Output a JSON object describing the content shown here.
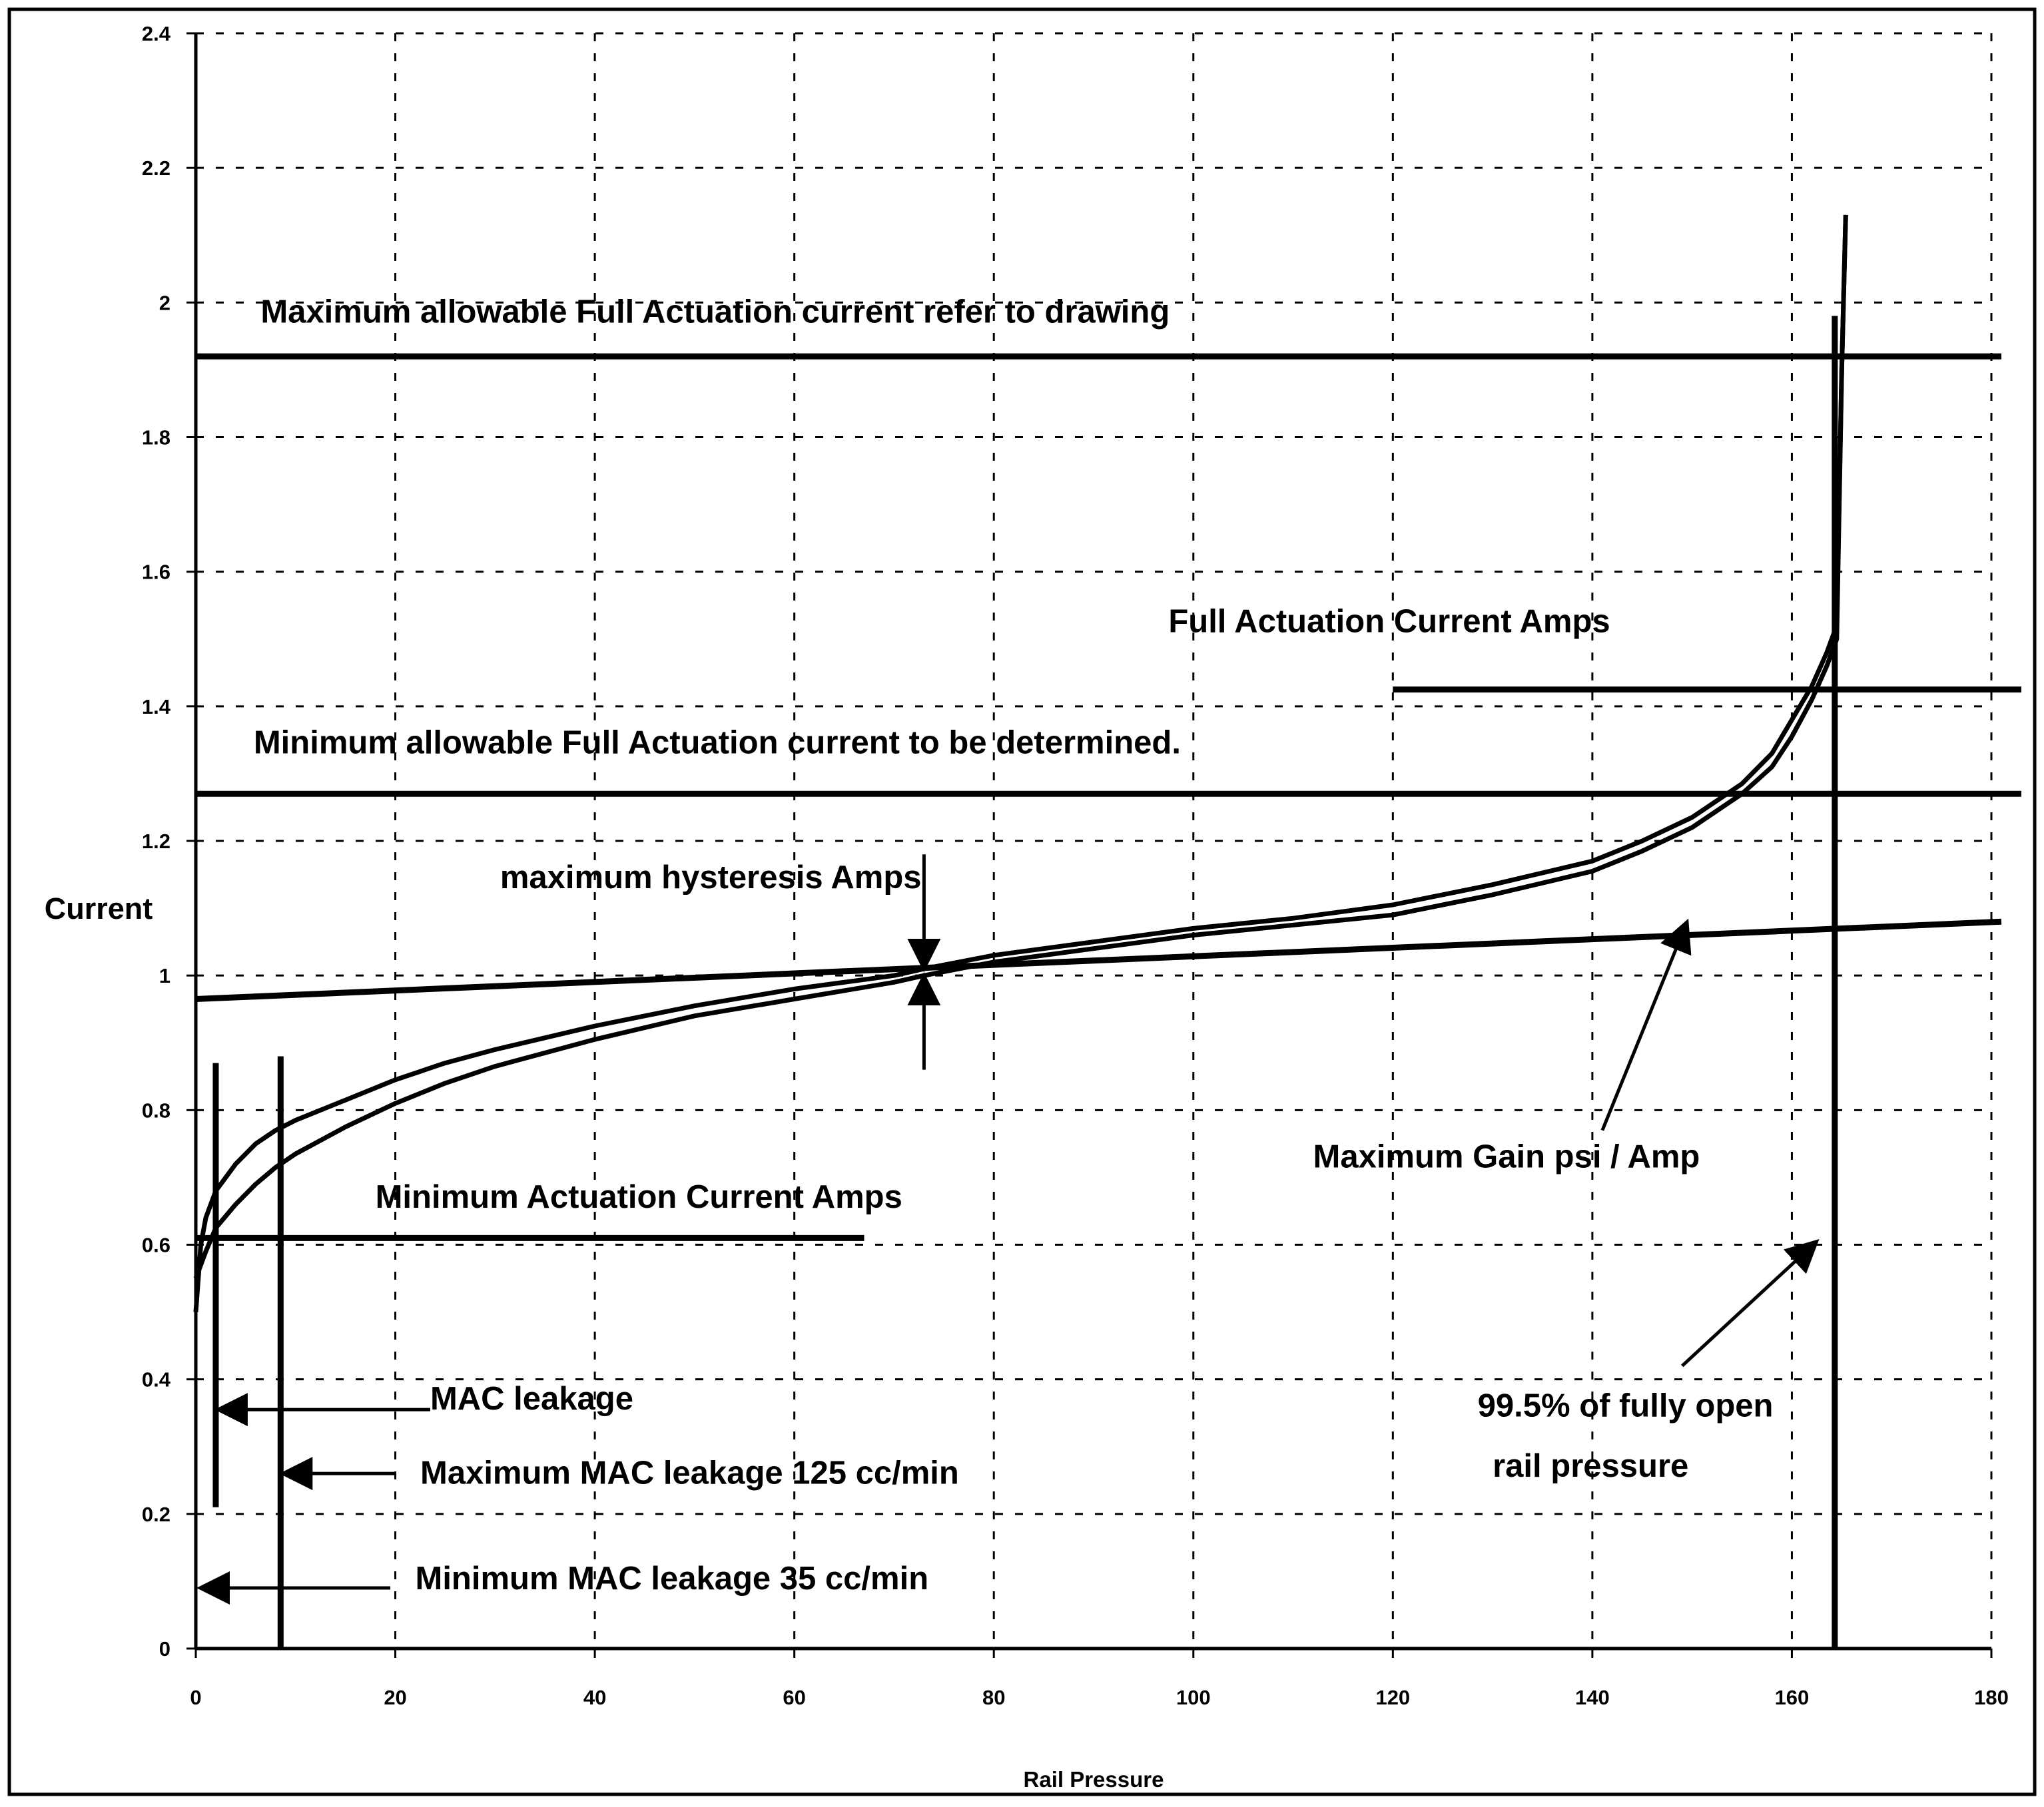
{
  "chart_data": {
    "type": "line",
    "title": "",
    "xlabel": "Rail Pressure",
    "ylabel": "Current",
    "xlim": [
      0,
      180
    ],
    "ylim": [
      0,
      2.4
    ],
    "grid": true,
    "x_ticks": [
      "0",
      "20",
      "40",
      "60",
      "80",
      "100",
      "120",
      "140",
      "160",
      "180"
    ],
    "y_ticks": [
      "0",
      "0.2",
      "0.4",
      "0.6",
      "0.8",
      "1",
      "1.2",
      "1.4",
      "1.6",
      "1.8",
      "2",
      "2.2",
      "2.4"
    ],
    "series": [
      {
        "x": [
          0,
          0.5,
          1,
          2,
          4,
          6,
          8,
          10,
          15,
          20,
          25,
          30,
          40,
          50,
          60,
          70,
          73,
          80,
          90,
          100,
          110,
          120,
          130,
          140,
          145,
          150,
          155,
          158,
          160,
          162,
          163.5,
          164.5,
          165,
          165.4
        ],
        "values": [
          0.5,
          0.6,
          0.64,
          0.68,
          0.72,
          0.75,
          0.77,
          0.785,
          0.815,
          0.845,
          0.87,
          0.89,
          0.925,
          0.955,
          0.98,
          1.0,
          1.01,
          1.03,
          1.05,
          1.07,
          1.085,
          1.105,
          1.135,
          1.17,
          1.2,
          1.235,
          1.285,
          1.33,
          1.38,
          1.43,
          1.48,
          1.52,
          1.9,
          2.13
        ]
      },
      {
        "x": [
          0,
          1,
          2,
          4,
          6,
          8,
          10,
          15,
          20,
          25,
          30,
          40,
          50,
          60,
          70,
          73,
          80,
          90,
          100,
          110,
          120,
          130,
          140,
          145,
          150,
          155,
          158,
          160,
          162,
          163.5,
          164.5,
          165,
          165.4
        ],
        "values": [
          0.55,
          0.59,
          0.625,
          0.66,
          0.69,
          0.715,
          0.735,
          0.775,
          0.81,
          0.84,
          0.865,
          0.905,
          0.94,
          0.965,
          0.99,
          1.0,
          1.02,
          1.04,
          1.06,
          1.075,
          1.09,
          1.12,
          1.155,
          1.185,
          1.22,
          1.27,
          1.31,
          1.355,
          1.41,
          1.46,
          1.5,
          1.9,
          2.13
        ]
      }
    ],
    "reference_lines": [
      {
        "name": "max-full-actuation",
        "x": [
          0,
          181
        ],
        "y": [
          1.92,
          1.92
        ]
      },
      {
        "name": "full-actuation",
        "x": [
          120,
          183
        ],
        "y": [
          1.425,
          1.425
        ]
      },
      {
        "name": "min-full-actuation",
        "x": [
          0,
          183
        ],
        "y": [
          1.27,
          1.27
        ]
      },
      {
        "name": "max-gain",
        "x": [
          0,
          181
        ],
        "y": [
          0.965,
          1.08
        ]
      },
      {
        "name": "min-actuation",
        "x": [
          0,
          67
        ],
        "y": [
          0.61,
          0.61
        ]
      },
      {
        "name": "mac-leakage",
        "x": [
          2,
          2
        ],
        "y": [
          0.21,
          0.87
        ]
      },
      {
        "name": "max-mac-leakage",
        "x": [
          8.5,
          8.5
        ],
        "y": [
          0,
          0.88
        ]
      },
      {
        "name": "fully-open",
        "x": [
          164.3,
          164.3
        ],
        "y": [
          0,
          1.98
        ]
      }
    ],
    "annotations": [
      {
        "text": "Maximum allowable Full Actuation current refer to drawing",
        "x": 6.5,
        "y": 1.97
      },
      {
        "text": "Full Actuation Current Amps",
        "x": 97.5,
        "y": 1.51
      },
      {
        "text": "Minimum allowable Full Actuation current to be determined.",
        "x": 5.8,
        "y": 1.33
      },
      {
        "text": "maximum hysteresis  Amps",
        "x": 30.5,
        "y": 1.13
      },
      {
        "text": "Maximum Gain psi / Amp",
        "x": 112,
        "y": 0.715
      },
      {
        "text": "Minimum Actuation Current Amps",
        "x": 18,
        "y": 0.655
      },
      {
        "text": "MAC leakage",
        "x": 23.5,
        "y": 0.355
      },
      {
        "text": "99.5% of fully open",
        "x": 128.5,
        "y": 0.345
      },
      {
        "text": "rail pressure",
        "x": 130,
        "y": 0.255
      },
      {
        "text": "Maximum MAC leakage 125 cc/min",
        "x": 22.5,
        "y": 0.245
      },
      {
        "text": "Minimum MAC leakage 35 cc/min",
        "x": 22,
        "y": 0.088
      }
    ],
    "arrows": [
      {
        "name": "hysteresis-down",
        "from": [
          73,
          1.18
        ],
        "to": [
          73,
          1.01
        ]
      },
      {
        "name": "hysteresis-up",
        "from": [
          73,
          0.86
        ],
        "to": [
          73,
          1.0
        ]
      },
      {
        "name": "gain",
        "from": [
          141,
          0.77
        ],
        "to": [
          149.5,
          1.08
        ]
      },
      {
        "name": "fully-open",
        "from": [
          149,
          0.42
        ],
        "to": [
          162.5,
          0.605
        ]
      },
      {
        "name": "mac-leakage",
        "from": [
          23.5,
          0.355
        ],
        "to": [
          2.2,
          0.355
        ]
      },
      {
        "name": "max-mac-leakage",
        "from": [
          20,
          0.26
        ],
        "to": [
          8.7,
          0.26
        ]
      },
      {
        "name": "min-mac-leakage",
        "from": [
          19.5,
          0.09
        ],
        "to": [
          0.4,
          0.09
        ]
      }
    ]
  }
}
